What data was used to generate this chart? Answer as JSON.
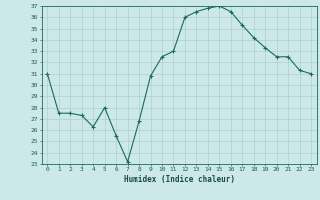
{
  "x": [
    0,
    1,
    2,
    3,
    4,
    5,
    6,
    7,
    8,
    9,
    10,
    11,
    12,
    13,
    14,
    15,
    16,
    17,
    18,
    19,
    20,
    21,
    22,
    23
  ],
  "y": [
    31.0,
    27.5,
    27.5,
    27.3,
    26.3,
    28.0,
    25.5,
    23.2,
    26.8,
    30.8,
    32.5,
    33.0,
    36.0,
    36.5,
    36.8,
    37.0,
    36.5,
    35.3,
    34.2,
    33.3,
    32.5,
    32.5,
    31.3,
    31.0
  ],
  "xlabel": "Humidex (Indice chaleur)",
  "ylim": [
    23,
    37
  ],
  "xlim": [
    -0.5,
    23.5
  ],
  "line_color": "#1a6b5a",
  "marker": "+",
  "bg_color": "#cde8e8",
  "grid_color": "#aed0d0",
  "tick_label_color": "#1a5a5a",
  "axis_color": "#1a6b5a",
  "xlabel_color": "#1a4a4a",
  "yticks": [
    23,
    24,
    25,
    26,
    27,
    28,
    29,
    30,
    31,
    32,
    33,
    34,
    35,
    36,
    37
  ],
  "xticks": [
    0,
    1,
    2,
    3,
    4,
    5,
    6,
    7,
    8,
    9,
    10,
    11,
    12,
    13,
    14,
    15,
    16,
    17,
    18,
    19,
    20,
    21,
    22,
    23
  ]
}
